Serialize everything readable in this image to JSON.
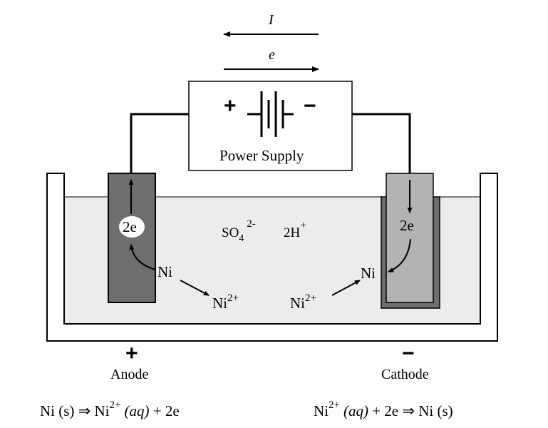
{
  "current_arrow": {
    "label": "I"
  },
  "electron_arrow": {
    "label": "e"
  },
  "power_supply": {
    "label": "Power Supply",
    "plus": "+",
    "minus": "−"
  },
  "solution": {
    "sulfate": {
      "base": "SO",
      "sub": "4",
      "sup": "2-"
    },
    "hydrogen": {
      "base": "2H",
      "sup": "+"
    }
  },
  "anode": {
    "electron_label": "2e",
    "metal_label": "Ni",
    "ion": {
      "base": "Ni",
      "sup": "2+"
    },
    "sign": "+",
    "name": "Anode",
    "equation": {
      "left": "Ni (s) ⇒ Ni",
      "sup": "2+",
      "aq": "(aq)",
      "right": " + 2e"
    }
  },
  "cathode": {
    "electron_label": "2e",
    "metal_label": "Ni",
    "ion": {
      "base": "Ni",
      "sup": "2+"
    },
    "sign": "−",
    "name": "Cathode",
    "equation": {
      "left": "Ni",
      "sup": "2+",
      "aq": "(aq)",
      "right": " + 2e ⇒ Ni (s)"
    }
  },
  "colors": {
    "anode_fill": "#6e6e6e",
    "cathode_fill": "#b3b3b3",
    "cathode_shell": "#6e6e6e",
    "electrolyte": "#ececec",
    "line": "#000000"
  }
}
